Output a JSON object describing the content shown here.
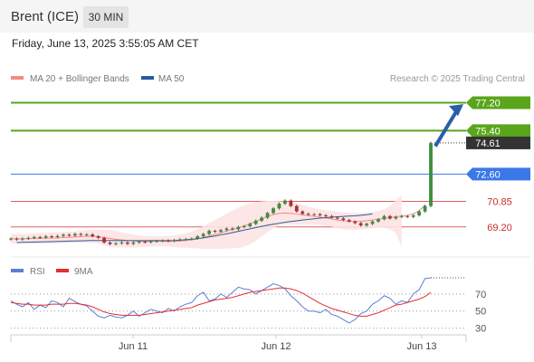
{
  "header": {
    "symbol": "Brent (ICE)",
    "timeframe": "30 MIN"
  },
  "datetime": "Friday, June 13, 2025 3:55:05 AM CET",
  "legend": {
    "ma20_bb": "MA 20 + Bollinger Bands",
    "ma50": "MA 50",
    "credit": "Research © 2025 Trading Central"
  },
  "rsi_legend": {
    "rsi": "RSI",
    "ma9": "9MA"
  },
  "colors": {
    "resistance": "#5aa51c",
    "support_blue": "#3b78e7",
    "support_red": "#e06060",
    "ma20": "#f28b82",
    "ma50": "#2b5a9b",
    "rsi": "#5b7fd6",
    "rsi_ma": "#e03030",
    "candle_up": "#3d8f3d",
    "candle_down": "#b03030",
    "band": "#fde3e3",
    "arrow": "#2a5ea8",
    "price_tag": "#333333"
  },
  "chart_data": [
    {
      "type": "candlestick",
      "ylim": [
        67.5,
        78.1
      ],
      "x_ticks": [
        "Jun 11",
        "Jun 12",
        "Jun 13"
      ],
      "levels": [
        {
          "label": "77.20",
          "value": 77.2,
          "kind": "resistance"
        },
        {
          "label": "75.40",
          "value": 75.4,
          "kind": "resistance"
        },
        {
          "label": "72.60",
          "value": 72.6,
          "kind": "support_blue"
        },
        {
          "label": "70.85",
          "value": 70.85,
          "kind": "support_red"
        },
        {
          "label": "69.20",
          "value": 69.2,
          "kind": "support_red"
        }
      ],
      "last_price": {
        "label": "74.61",
        "value": 74.61
      },
      "close": [
        68.45,
        68.4,
        68.45,
        68.5,
        68.55,
        68.52,
        68.6,
        68.55,
        68.62,
        68.7,
        68.65,
        68.75,
        68.7,
        68.72,
        68.6,
        68.5,
        68.2,
        68.1,
        68.15,
        68.2,
        68.12,
        68.2,
        68.25,
        68.22,
        68.28,
        68.3,
        68.32,
        68.3,
        68.35,
        68.4,
        68.42,
        68.45,
        68.6,
        68.75,
        68.95,
        68.9,
        69.0,
        69.1,
        69.05,
        69.2,
        69.25,
        69.4,
        69.6,
        69.8,
        70.1,
        70.4,
        70.7,
        70.9,
        70.55,
        70.2,
        70.05,
        70.0,
        70.02,
        69.95,
        69.9,
        69.8,
        69.75,
        69.65,
        69.55,
        69.45,
        69.3,
        69.4,
        69.55,
        69.7,
        69.9,
        69.75,
        69.85,
        69.9,
        69.85,
        69.95,
        70.2,
        70.55,
        74.61
      ],
      "ma20": [
        68.45,
        68.44,
        68.44,
        68.45,
        68.46,
        68.47,
        68.48,
        68.49,
        68.5,
        68.52,
        68.54,
        68.56,
        68.58,
        68.6,
        68.6,
        68.58,
        68.52,
        68.46,
        68.41,
        68.37,
        68.33,
        68.3,
        68.28,
        68.27,
        68.27,
        68.28,
        68.28,
        68.28,
        68.28,
        68.3,
        68.33,
        68.37,
        68.43,
        68.52,
        68.62,
        68.72,
        68.82,
        68.93,
        69.04,
        69.15,
        69.27,
        69.4,
        69.55,
        69.72,
        69.88,
        70.0,
        70.08,
        70.1,
        70.08,
        70.03,
        69.98,
        69.93,
        69.88,
        69.83,
        69.78,
        69.72,
        69.65,
        69.6,
        69.57,
        69.56,
        69.57,
        69.6,
        69.65,
        69.7,
        69.75,
        69.8,
        69.86,
        69.9,
        69.95,
        70.05,
        70.25,
        70.6
      ],
      "bb_upper": [
        68.75,
        68.74,
        68.74,
        68.75,
        68.78,
        68.8,
        68.82,
        68.84,
        68.86,
        68.88,
        68.9,
        68.92,
        68.96,
        69.0,
        69.02,
        69.03,
        69.03,
        69.0,
        68.95,
        68.85,
        68.78,
        68.72,
        68.66,
        68.62,
        68.6,
        68.6,
        68.6,
        68.62,
        68.66,
        68.72,
        68.8,
        68.9,
        69.05,
        69.25,
        69.45,
        69.65,
        69.85,
        70.05,
        70.25,
        70.45,
        70.6,
        70.72,
        70.8,
        70.85,
        70.88,
        70.88,
        70.86,
        70.82,
        70.78,
        70.72,
        70.62,
        70.52,
        70.42,
        70.34,
        70.28,
        70.22,
        70.18,
        70.15,
        70.12,
        70.1,
        70.1,
        70.12,
        70.16,
        70.24,
        70.35,
        70.55,
        70.9,
        71.3
      ],
      "bb_lower": [
        68.15,
        68.14,
        68.14,
        68.15,
        68.14,
        68.14,
        68.14,
        68.14,
        68.14,
        68.16,
        68.18,
        68.2,
        68.2,
        68.2,
        68.18,
        68.13,
        68.01,
        67.92,
        67.87,
        67.89,
        67.88,
        67.88,
        67.9,
        67.92,
        67.94,
        67.96,
        67.96,
        67.94,
        67.9,
        67.88,
        67.86,
        67.84,
        67.81,
        67.79,
        67.79,
        67.79,
        67.79,
        67.81,
        67.83,
        67.85,
        67.94,
        68.08,
        68.3,
        68.59,
        68.88,
        69.12,
        69.3,
        69.38,
        69.38,
        69.34,
        69.34,
        69.34,
        69.34,
        69.32,
        69.28,
        69.22,
        69.12,
        69.05,
        69.02,
        69.02,
        69.04,
        69.08,
        69.14,
        69.16,
        69.15,
        69.05,
        68.82,
        67.9
      ],
      "ma50": [
        68.2,
        68.21,
        68.22,
        68.23,
        68.24,
        68.25,
        68.26,
        68.27,
        68.28,
        68.29,
        68.3,
        68.31,
        68.32,
        68.33,
        68.33,
        68.33,
        68.33,
        68.33,
        68.32,
        68.32,
        68.32,
        68.32,
        68.32,
        68.32,
        68.32,
        68.32,
        68.32,
        68.33,
        68.35,
        68.38,
        68.41,
        68.45,
        68.5,
        68.56,
        68.62,
        68.69,
        68.76,
        68.84,
        68.92,
        69.0,
        69.08,
        69.16,
        69.24,
        69.31,
        69.38,
        69.44,
        69.5,
        69.55,
        69.6,
        69.65,
        69.69,
        69.73,
        69.77,
        69.8,
        69.83,
        69.86,
        69.88,
        69.9,
        69.92,
        69.95,
        69.99,
        70.05
      ]
    },
    {
      "type": "line",
      "title": "RSI",
      "ylim": [
        20,
        90
      ],
      "y_ticks": [
        70,
        50,
        30
      ],
      "series": [
        {
          "name": "RSI",
          "values": [
            62,
            58,
            55,
            60,
            52,
            57,
            54,
            62,
            60,
            55,
            65,
            61,
            58,
            56,
            50,
            44,
            42,
            45,
            43,
            42,
            45,
            50,
            44,
            48,
            52,
            50,
            48,
            53,
            50,
            55,
            58,
            60,
            68,
            72,
            62,
            64,
            70,
            66,
            72,
            78,
            76,
            75,
            70,
            74,
            78,
            82,
            80,
            76,
            68,
            62,
            55,
            50,
            50,
            48,
            52,
            46,
            44,
            40,
            36,
            40,
            47,
            50,
            58,
            62,
            68,
            65,
            58,
            62,
            60,
            70,
            75,
            88,
            89
          ]
        },
        {
          "name": "9MA",
          "values": [
            60,
            59,
            58,
            58,
            57,
            57,
            57,
            58,
            58,
            58,
            59,
            59,
            58,
            57,
            55,
            52,
            49,
            47,
            46,
            45,
            45,
            45,
            45,
            46,
            47,
            48,
            49,
            50,
            51,
            52,
            53,
            54,
            57,
            59,
            61,
            63,
            64,
            65,
            66,
            68,
            70,
            72,
            73,
            74,
            75,
            76,
            77,
            77,
            76,
            74,
            71,
            67,
            63,
            59,
            56,
            53,
            51,
            49,
            47,
            45,
            44,
            44,
            46,
            48,
            51,
            54,
            57,
            58,
            60,
            62,
            64,
            67,
            72
          ]
        }
      ]
    }
  ]
}
